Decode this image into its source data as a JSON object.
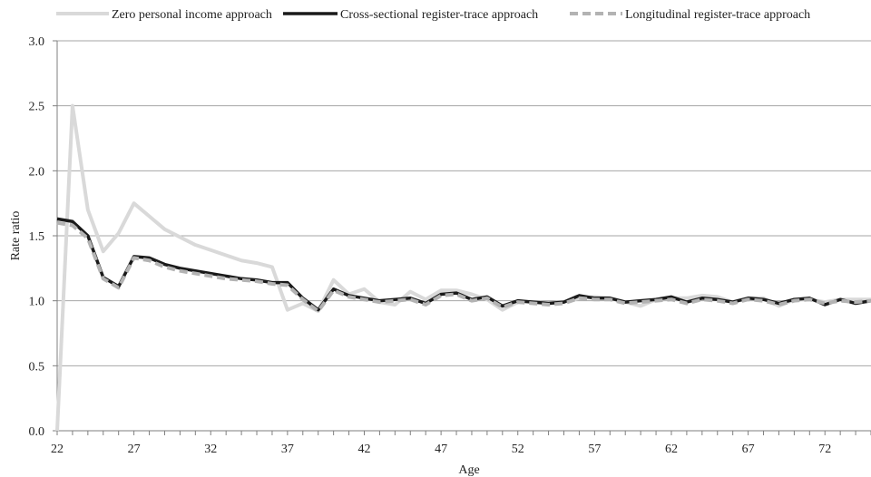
{
  "chart_data": {
    "type": "line",
    "title": "",
    "xlabel": "Age",
    "ylabel": "Rate ratio",
    "xlim": [
      22,
      75
    ],
    "ylim": [
      0,
      3
    ],
    "x_ticks": [
      "22",
      "27",
      "32",
      "37",
      "42",
      "47",
      "52",
      "57",
      "62",
      "67",
      "72"
    ],
    "y_ticks": [
      "0.0",
      "0.5",
      "1.0",
      "1.5",
      "2.0",
      "2.5",
      "3.0"
    ],
    "grid": "horizontal",
    "legend_position": "top",
    "x": [
      22,
      23,
      24,
      25,
      26,
      27,
      28,
      29,
      30,
      31,
      32,
      33,
      34,
      35,
      36,
      37,
      38,
      39,
      40,
      41,
      42,
      43,
      44,
      45,
      46,
      47,
      48,
      49,
      50,
      51,
      52,
      53,
      54,
      55,
      56,
      57,
      58,
      59,
      60,
      61,
      62,
      63,
      64,
      65,
      66,
      67,
      68,
      69,
      70,
      71,
      72,
      73,
      74,
      75
    ],
    "series": [
      {
        "name": "Zero personal income approach",
        "color": "#d9d9d9",
        "style": "solid",
        "values": [
          0.0,
          2.5,
          1.7,
          1.38,
          1.52,
          1.75,
          1.65,
          1.55,
          1.49,
          1.43,
          1.39,
          1.35,
          1.31,
          1.29,
          1.26,
          0.93,
          0.98,
          0.92,
          1.16,
          1.05,
          1.09,
          0.99,
          0.97,
          1.07,
          1.01,
          1.08,
          1.08,
          1.05,
          1.01,
          0.93,
          0.99,
          0.99,
          0.98,
          0.99,
          1.02,
          1.03,
          1.02,
          0.99,
          0.96,
          1.01,
          1.02,
          1.02,
          1.04,
          1.03,
          0.99,
          1.02,
          1.02,
          0.96,
          1.01,
          1.01,
          0.99,
          1.01,
          1.01,
          1.01
        ]
      },
      {
        "name": "Cross-sectional register-trace approach",
        "color": "#1a1a1a",
        "style": "solid",
        "values": [
          1.63,
          1.61,
          1.5,
          1.18,
          1.11,
          1.34,
          1.33,
          1.28,
          1.25,
          1.23,
          1.21,
          1.19,
          1.17,
          1.16,
          1.14,
          1.14,
          1.02,
          0.93,
          1.09,
          1.04,
          1.02,
          1.0,
          1.01,
          1.02,
          0.98,
          1.05,
          1.06,
          1.01,
          1.03,
          0.96,
          1.0,
          0.99,
          0.98,
          0.99,
          1.04,
          1.02,
          1.02,
          0.99,
          1.0,
          1.01,
          1.03,
          0.99,
          1.02,
          1.01,
          0.99,
          1.02,
          1.01,
          0.98,
          1.01,
          1.02,
          0.97,
          1.01,
          0.98,
          1.0
        ]
      },
      {
        "name": "Longitudinal register-trace approach",
        "color": "#b3b3b3",
        "style": "dashed",
        "values": [
          1.6,
          1.58,
          1.48,
          1.17,
          1.1,
          1.33,
          1.31,
          1.26,
          1.23,
          1.21,
          1.19,
          1.17,
          1.16,
          1.15,
          1.13,
          1.12,
          1.01,
          0.92,
          1.08,
          1.03,
          1.01,
          0.99,
          1.0,
          1.01,
          0.97,
          1.04,
          1.05,
          1.0,
          1.02,
          0.95,
          0.99,
          0.98,
          0.97,
          0.98,
          1.02,
          1.01,
          1.01,
          0.98,
          0.99,
          1.0,
          1.01,
          0.98,
          1.01,
          1.0,
          0.98,
          1.01,
          1.0,
          0.97,
          1.0,
          1.01,
          0.98,
          1.0,
          0.99,
          1.0
        ]
      }
    ]
  }
}
